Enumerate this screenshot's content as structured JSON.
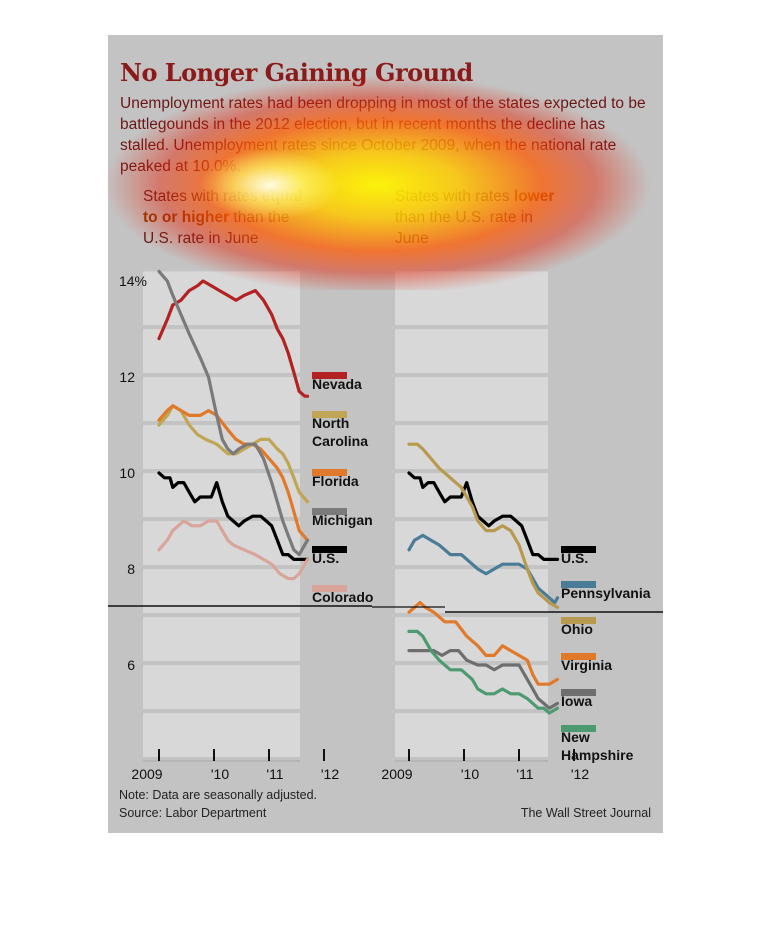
{
  "title": "No Longer Gaining Ground",
  "subtitle": "Unemployment rates had been dropping in most of the states expected to be battlegounds in the 2012 election, but in recent months the decline has stalled. Unemployment rates since October 2009, when the national rate peaked at 10.0%.",
  "panel_left": {
    "pre": "States with rates ",
    "bold": "equal to or higher",
    "post": " than the U.S. rate in June"
  },
  "panel_right": {
    "pre": "States with rates ",
    "bold": "lower",
    "post": " than the U.S. rate in June"
  },
  "note": "Note: Data are seasonally adjusted.",
  "source": "Source: Labor Department",
  "credit": "The Wall Street Journal",
  "colors": {
    "Nevada": "#b22222",
    "North Carolina": "#c0a654",
    "Florida": "#e07a2a",
    "Michigan": "#7a7a7a",
    "U.S.": "#000000",
    "Colorado": "#d9a49a",
    "Pennsylvania": "#4a7c98",
    "Ohio": "#b89a4e",
    "Virginia": "#e07a2a",
    "Iowa": "#6e6e6e",
    "New Hampshire": "#4e9a70"
  },
  "chart_data": [
    {
      "type": "line",
      "subtitle": "States with rates equal to or higher than the U.S. rate in June",
      "x_ticks": [
        "2009",
        "'10",
        "'11",
        "'12"
      ],
      "y_ticks": [
        "14%",
        "12",
        "10",
        "8",
        "6"
      ],
      "ylim": [
        4.0,
        14.2
      ],
      "xlim": [
        2009.75,
        2012.45
      ],
      "grid": true,
      "series": [
        {
          "name": "Nevada",
          "x": [
            2009.75,
            2009.9,
            2010.0,
            2010.15,
            2010.3,
            2010.45,
            2010.55,
            2010.7,
            2010.85,
            2011.0,
            2011.15,
            2011.3,
            2011.5,
            2011.65,
            2011.8,
            2011.9,
            2012.0,
            2012.1,
            2012.2,
            2012.3,
            2012.4,
            2012.45
          ],
          "y": [
            12.8,
            13.2,
            13.5,
            13.6,
            13.8,
            13.9,
            14.0,
            13.9,
            13.8,
            13.7,
            13.6,
            13.7,
            13.8,
            13.6,
            13.3,
            13.0,
            12.8,
            12.5,
            12.1,
            11.7,
            11.6,
            11.6
          ]
        },
        {
          "name": "North Carolina",
          "x": [
            2009.75,
            2009.9,
            2010.0,
            2010.15,
            2010.3,
            2010.45,
            2010.6,
            2010.8,
            2011.0,
            2011.15,
            2011.3,
            2011.45,
            2011.6,
            2011.75,
            2011.9,
            2012.0,
            2012.1,
            2012.2,
            2012.3,
            2012.45
          ],
          "y": [
            11.0,
            11.2,
            11.4,
            11.3,
            11.0,
            10.8,
            10.7,
            10.6,
            10.4,
            10.4,
            10.5,
            10.6,
            10.7,
            10.7,
            10.5,
            10.4,
            10.2,
            9.9,
            9.6,
            9.4
          ]
        },
        {
          "name": "Florida",
          "x": [
            2009.75,
            2009.9,
            2010.0,
            2010.15,
            2010.3,
            2010.5,
            2010.65,
            2010.8,
            2011.0,
            2011.15,
            2011.3,
            2011.45,
            2011.6,
            2011.75,
            2011.9,
            2012.0,
            2012.1,
            2012.2,
            2012.3,
            2012.45
          ],
          "y": [
            11.1,
            11.3,
            11.4,
            11.3,
            11.2,
            11.2,
            11.3,
            11.2,
            10.9,
            10.7,
            10.6,
            10.6,
            10.5,
            10.3,
            10.1,
            9.9,
            9.6,
            9.2,
            8.8,
            8.6
          ]
        },
        {
          "name": "Michigan",
          "x": [
            2009.75,
            2009.9,
            2010.0,
            2010.15,
            2010.3,
            2010.5,
            2010.65,
            2010.8,
            2010.9,
            2011.0,
            2011.1,
            2011.2,
            2011.35,
            2011.5,
            2011.65,
            2011.8,
            2011.9,
            2012.0,
            2012.1,
            2012.2,
            2012.3,
            2012.45
          ],
          "y": [
            14.2,
            14.0,
            13.7,
            13.3,
            12.9,
            12.4,
            12.0,
            11.2,
            10.7,
            10.5,
            10.4,
            10.5,
            10.6,
            10.6,
            10.3,
            9.8,
            9.4,
            9.0,
            8.7,
            8.4,
            8.3,
            8.6
          ]
        },
        {
          "name": "U.S.",
          "x": [
            2009.75,
            2009.85,
            2009.95,
            2010.0,
            2010.1,
            2010.2,
            2010.3,
            2010.4,
            2010.5,
            2010.6,
            2010.7,
            2010.8,
            2010.9,
            2011.0,
            2011.1,
            2011.2,
            2011.3,
            2011.45,
            2011.6,
            2011.7,
            2011.8,
            2011.9,
            2012.0,
            2012.1,
            2012.2,
            2012.3,
            2012.4,
            2012.45
          ],
          "y": [
            10.0,
            9.9,
            9.9,
            9.7,
            9.8,
            9.8,
            9.6,
            9.4,
            9.5,
            9.5,
            9.5,
            9.8,
            9.4,
            9.1,
            9.0,
            8.9,
            9.0,
            9.1,
            9.1,
            9.0,
            8.9,
            8.6,
            8.3,
            8.3,
            8.2,
            8.2,
            8.2,
            8.2
          ]
        },
        {
          "name": "Colorado",
          "x": [
            2009.75,
            2009.9,
            2010.0,
            2010.1,
            2010.2,
            2010.35,
            2010.5,
            2010.65,
            2010.8,
            2010.9,
            2011.0,
            2011.1,
            2011.3,
            2011.5,
            2011.65,
            2011.8,
            2011.95,
            2012.1,
            2012.2,
            2012.3,
            2012.45
          ],
          "y": [
            8.4,
            8.6,
            8.8,
            8.9,
            9.0,
            8.9,
            8.9,
            9.0,
            9.0,
            8.8,
            8.6,
            8.5,
            8.4,
            8.3,
            8.2,
            8.1,
            7.9,
            7.8,
            7.8,
            7.9,
            8.2
          ]
        }
      ]
    },
    {
      "type": "line",
      "subtitle": "States with rates lower than the U.S. rate in June",
      "x_ticks": [
        "2009",
        "'10",
        "'11",
        "'12"
      ],
      "ylim": [
        4.0,
        14.2
      ],
      "xlim": [
        2009.75,
        2012.45
      ],
      "grid": true,
      "series": [
        {
          "name": "U.S.",
          "x": [
            2009.75,
            2009.85,
            2009.95,
            2010.0,
            2010.1,
            2010.2,
            2010.3,
            2010.4,
            2010.5,
            2010.6,
            2010.7,
            2010.8,
            2010.9,
            2011.0,
            2011.1,
            2011.2,
            2011.3,
            2011.45,
            2011.6,
            2011.7,
            2011.8,
            2011.9,
            2012.0,
            2012.1,
            2012.2,
            2012.3,
            2012.4,
            2012.45
          ],
          "y": [
            10.0,
            9.9,
            9.9,
            9.7,
            9.8,
            9.8,
            9.6,
            9.4,
            9.5,
            9.5,
            9.5,
            9.8,
            9.4,
            9.1,
            9.0,
            8.9,
            9.0,
            9.1,
            9.1,
            9.0,
            8.9,
            8.6,
            8.3,
            8.3,
            8.2,
            8.2,
            8.2,
            8.2
          ]
        },
        {
          "name": "Pennsylvania",
          "x": [
            2009.75,
            2009.85,
            2010.0,
            2010.15,
            2010.3,
            2010.5,
            2010.7,
            2010.9,
            2011.0,
            2011.15,
            2011.3,
            2011.45,
            2011.6,
            2011.75,
            2011.9,
            2012.0,
            2012.1,
            2012.2,
            2012.3,
            2012.4,
            2012.45
          ],
          "y": [
            8.4,
            8.6,
            8.7,
            8.6,
            8.5,
            8.3,
            8.3,
            8.1,
            8.0,
            7.9,
            8.0,
            8.1,
            8.1,
            8.1,
            8.0,
            7.8,
            7.6,
            7.5,
            7.4,
            7.3,
            7.4
          ]
        },
        {
          "name": "Ohio",
          "x": [
            2009.75,
            2009.9,
            2010.0,
            2010.15,
            2010.3,
            2010.5,
            2010.7,
            2010.9,
            2011.0,
            2011.15,
            2011.3,
            2011.45,
            2011.6,
            2011.75,
            2011.9,
            2012.0,
            2012.1,
            2012.2,
            2012.3,
            2012.45
          ],
          "y": [
            10.6,
            10.6,
            10.5,
            10.3,
            10.1,
            9.9,
            9.7,
            9.3,
            9.0,
            8.8,
            8.8,
            8.9,
            8.8,
            8.5,
            8.0,
            7.7,
            7.5,
            7.4,
            7.3,
            7.2
          ]
        },
        {
          "name": "Virginia",
          "x": [
            2009.75,
            2009.85,
            2009.95,
            2010.05,
            2010.2,
            2010.4,
            2010.6,
            2010.8,
            2011.0,
            2011.15,
            2011.3,
            2011.45,
            2011.6,
            2011.75,
            2011.9,
            2012.0,
            2012.1,
            2012.2,
            2012.3,
            2012.45
          ],
          "y": [
            7.1,
            7.2,
            7.3,
            7.2,
            7.1,
            6.9,
            6.9,
            6.6,
            6.4,
            6.2,
            6.2,
            6.4,
            6.3,
            6.2,
            6.1,
            5.8,
            5.6,
            5.6,
            5.6,
            5.7
          ]
        },
        {
          "name": "Iowa",
          "x": [
            2009.75,
            2009.9,
            2010.05,
            2010.2,
            2010.35,
            2010.5,
            2010.65,
            2010.8,
            2011.0,
            2011.15,
            2011.3,
            2011.45,
            2011.6,
            2011.75,
            2011.9,
            2012.0,
            2012.1,
            2012.2,
            2012.3,
            2012.45
          ],
          "y": [
            6.3,
            6.3,
            6.3,
            6.3,
            6.2,
            6.3,
            6.3,
            6.1,
            6.0,
            6.0,
            5.9,
            6.0,
            6.0,
            6.0,
            5.7,
            5.5,
            5.3,
            5.2,
            5.1,
            5.2
          ]
        },
        {
          "name": "New Hampshire",
          "x": [
            2009.75,
            2009.9,
            2010.0,
            2010.15,
            2010.3,
            2010.5,
            2010.7,
            2010.9,
            2011.0,
            2011.15,
            2011.3,
            2011.45,
            2011.6,
            2011.75,
            2011.9,
            2012.0,
            2012.1,
            2012.2,
            2012.3,
            2012.45
          ],
          "y": [
            6.7,
            6.7,
            6.6,
            6.3,
            6.1,
            5.9,
            5.9,
            5.7,
            5.5,
            5.4,
            5.4,
            5.5,
            5.4,
            5.4,
            5.3,
            5.2,
            5.1,
            5.1,
            5.0,
            5.1
          ]
        }
      ]
    }
  ]
}
